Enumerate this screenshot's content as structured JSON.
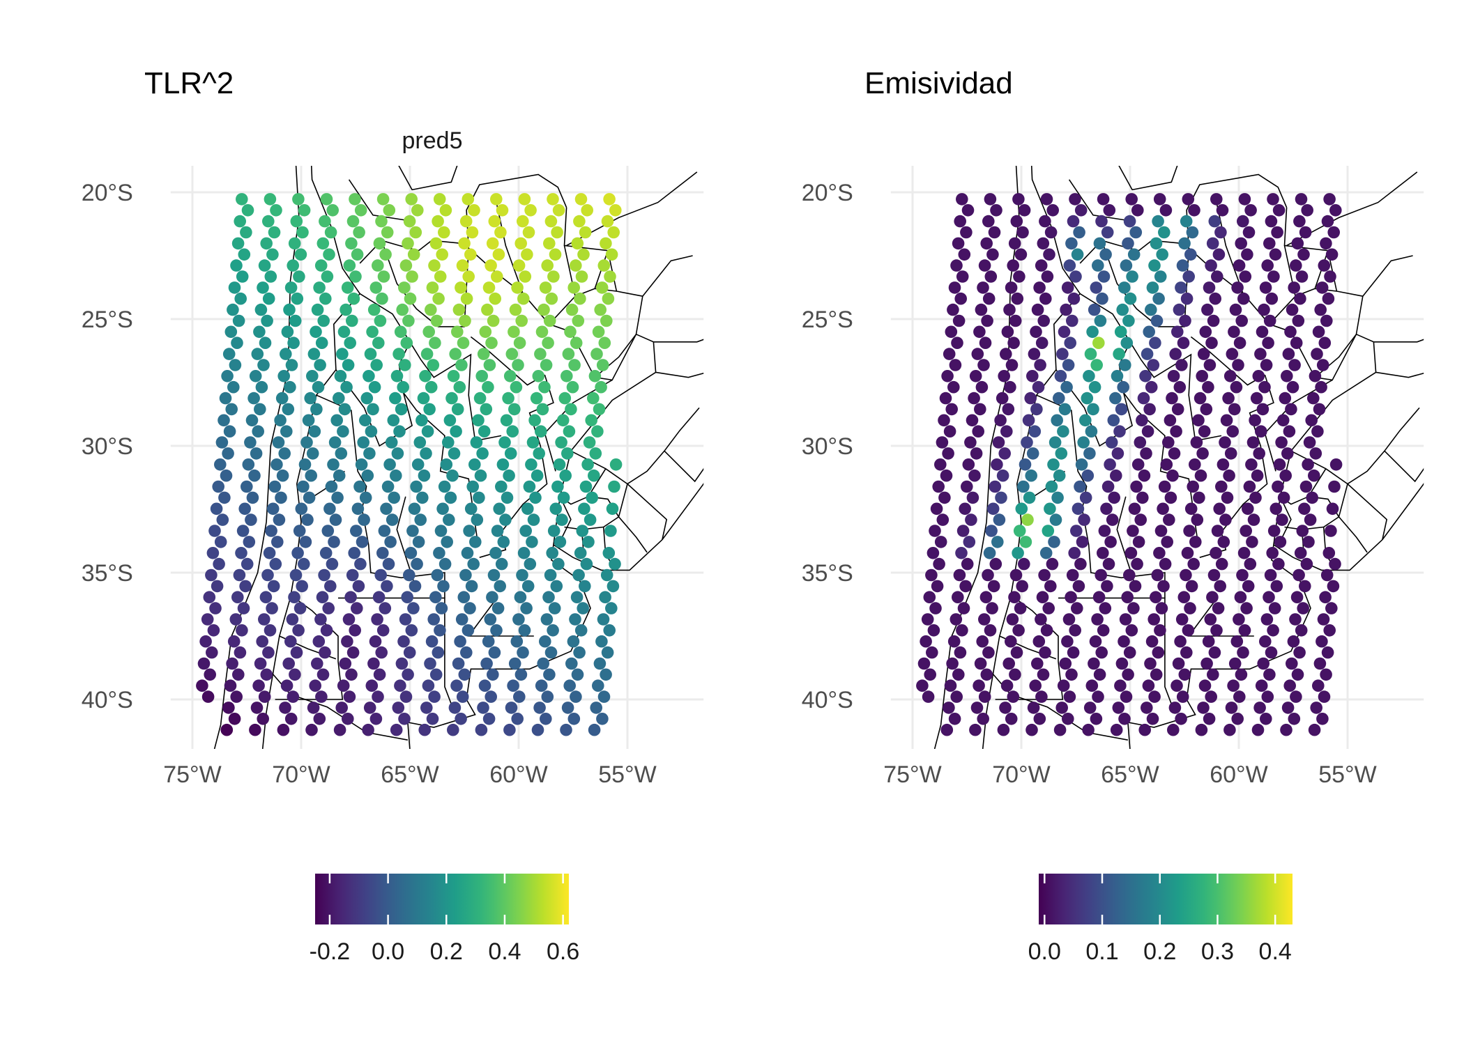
{
  "figure": {
    "panels": [
      {
        "id": "tlr2",
        "title": "TLR^2",
        "subtitle": "pred5",
        "x_ticks": [
          "75°W",
          "70°W",
          "65°W",
          "60°W",
          "55°W"
        ],
        "y_ticks": [
          "20°S",
          "25°S",
          "30°S",
          "35°S",
          "40°S"
        ],
        "colorbar": {
          "palette": "viridis",
          "range": [
            -0.25,
            0.62
          ],
          "ticks": [
            -0.2,
            0.0,
            0.2,
            0.4,
            0.6
          ],
          "tick_labels": [
            "-0.2",
            "0.0",
            "0.2",
            "0.4",
            "0.6"
          ]
        }
      },
      {
        "id": "emisividad",
        "title": "Emisividad",
        "subtitle": "",
        "x_ticks": [
          "75°W",
          "70°W",
          "65°W",
          "60°W",
          "55°W"
        ],
        "y_ticks": [
          "20°S",
          "25°S",
          "30°S",
          "35°S",
          "40°S"
        ],
        "colorbar": {
          "palette": "viridis",
          "range": [
            -0.01,
            0.43
          ],
          "ticks": [
            0.0,
            0.1,
            0.2,
            0.3,
            0.4
          ],
          "tick_labels": [
            "0.0",
            "0.1",
            "0.2",
            "0.3",
            "0.4"
          ]
        }
      }
    ]
  },
  "chart_data": {
    "type": "scatter",
    "map_extent": {
      "lon": [
        -76,
        -51.5
      ],
      "lat": [
        -42,
        -19
      ]
    },
    "x_ticks_lon": [
      -75,
      -70,
      -65,
      -60,
      -55
    ],
    "y_ticks_lat": [
      -20,
      -25,
      -30,
      -35,
      -40
    ],
    "grid": true,
    "colors": {
      "viridis": [
        "#440154",
        "#482878",
        "#3e4989",
        "#31688e",
        "#26828e",
        "#1f9e89",
        "#35b779",
        "#6ece58",
        "#b5de2b",
        "#fde725"
      ],
      "grid": "#ebebeb",
      "border": "#000000"
    },
    "tracks": {
      "count": 17,
      "points_per_track": 49,
      "track_spacing_lon": 1.3,
      "tilt_lon_per_lat": 0.095
    },
    "tlr2_pattern": "rising from about -0.2 in the south and southwest to about 0.6 in the north-east (max near 22-25°S, 63-61°W)",
    "emisividad_pattern": "mostly near 0.0; higher values of 0.1-0.43 along the Andes foothills between 21°S and 34°S, 70-66°W"
  }
}
